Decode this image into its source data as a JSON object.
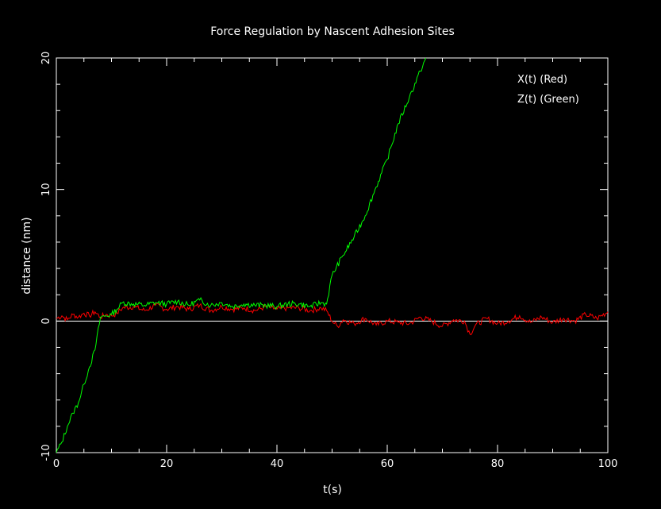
{
  "chart_data": {
    "type": "line",
    "title": "Force Regulation by Nascent Adhesion Sites",
    "xlabel": "t(s)",
    "ylabel": "distance (nm)",
    "xlim": [
      0,
      100
    ],
    "ylim": [
      -10,
      20
    ],
    "x_ticks": [
      0,
      20,
      40,
      60,
      80,
      100
    ],
    "y_ticks": [
      -10,
      0,
      10,
      20
    ],
    "x_tick_labels": [
      "0",
      "20",
      "40",
      "60",
      "80",
      "100"
    ],
    "y_tick_labels": [
      "-10",
      "0",
      "10",
      "20"
    ],
    "grid": false,
    "zero_line": true,
    "legend_position": "top-right",
    "legend": [
      "X(t) (Red)",
      "Z(t) (Green)"
    ],
    "colors": {
      "background": "#000000",
      "axes": "#ffffff",
      "red": "#ff0000",
      "green": "#00ff00"
    },
    "series": [
      {
        "key": "x",
        "color": "#ff0000",
        "x": [
          0,
          1,
          2,
          3,
          4,
          5,
          6,
          7,
          8,
          9,
          10,
          11,
          12,
          14,
          16,
          18,
          20,
          22,
          24,
          26,
          28,
          30,
          32,
          34,
          36,
          38,
          40,
          42,
          44,
          46,
          48,
          49,
          50,
          51,
          52,
          54,
          56,
          58,
          60,
          62,
          64,
          66,
          68,
          70,
          72,
          74,
          75,
          76,
          78,
          80,
          82,
          84,
          86,
          88,
          90,
          92,
          94,
          96,
          98,
          100
        ],
        "y": [
          0.2,
          0.4,
          0.1,
          0.5,
          0.3,
          0.6,
          0.4,
          0.7,
          0.3,
          0.5,
          0.4,
          0.6,
          1.0,
          1.1,
          0.8,
          1.2,
          0.9,
          1.1,
          0.9,
          1.2,
          0.8,
          1.1,
          0.9,
          1.0,
          0.8,
          1.1,
          0.9,
          1.0,
          1.0,
          0.8,
          1.0,
          0.8,
          0.0,
          -0.4,
          0.1,
          -0.2,
          0.2,
          -0.3,
          0.0,
          -0.1,
          -0.2,
          0.3,
          0.0,
          -0.4,
          0.1,
          0.0,
          -1.0,
          -0.3,
          0.2,
          -0.2,
          0.0,
          0.4,
          -0.1,
          0.3,
          -0.1,
          0.2,
          0.0,
          0.5,
          0.2,
          0.7
        ]
      },
      {
        "key": "z",
        "color": "#00ff00",
        "x": [
          0,
          1,
          2,
          3,
          4,
          5,
          6,
          7,
          8,
          9,
          10,
          11,
          12,
          14,
          16,
          18,
          20,
          22,
          24,
          26,
          28,
          30,
          32,
          34,
          36,
          38,
          40,
          42,
          44,
          46,
          48,
          49,
          50,
          52,
          54,
          56,
          58,
          60,
          62,
          64,
          66,
          67
        ],
        "y": [
          -10,
          -9.2,
          -8.0,
          -7.0,
          -6.2,
          -4.8,
          -3.5,
          -2.2,
          0.3,
          0.4,
          0.5,
          0.9,
          1.4,
          1.3,
          1.2,
          1.4,
          1.3,
          1.5,
          1.2,
          1.6,
          1.2,
          1.4,
          1.1,
          1.3,
          1.2,
          1.2,
          1.1,
          1.3,
          1.3,
          1.1,
          1.4,
          1.3,
          3.5,
          5.0,
          6.4,
          8.0,
          10.2,
          12.3,
          15.0,
          17.0,
          19.0,
          20.0
        ]
      }
    ]
  }
}
